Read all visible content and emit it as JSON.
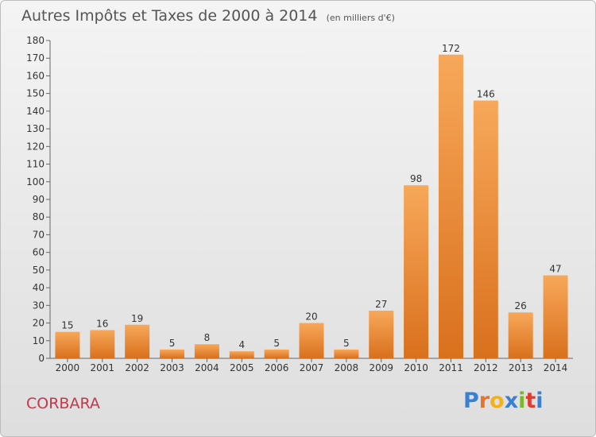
{
  "header": {
    "title": "Autres Impôts et Taxes de 2000 à 2014",
    "subtitle": "(en milliers d'€)"
  },
  "footer": {
    "town": "CORBARA",
    "brand": "Proxiti"
  },
  "colors": {
    "bar_top": "#f7a85a",
    "bar_bottom": "#d9701c",
    "town": "#c8364a",
    "brand_letters": [
      "#3b7fd1",
      "#e8732a",
      "#f2b21c",
      "#3b7fd1",
      "#7ab82a",
      "#e33b2c",
      "#3b7fd1"
    ]
  },
  "chart_data": {
    "type": "bar",
    "title": "Autres Impôts et Taxes de 2000 à 2014",
    "subtitle": "(en milliers d'€)",
    "categories": [
      "2000",
      "2001",
      "2002",
      "2003",
      "2004",
      "2005",
      "2006",
      "2007",
      "2008",
      "2009",
      "2010",
      "2011",
      "2012",
      "2013",
      "2014"
    ],
    "values": [
      15,
      16,
      19,
      5,
      8,
      4,
      5,
      20,
      5,
      27,
      98,
      172,
      146,
      26,
      47
    ],
    "ylim": [
      0,
      180
    ],
    "yticks": [
      0,
      10,
      20,
      30,
      40,
      50,
      60,
      70,
      80,
      90,
      100,
      110,
      120,
      130,
      140,
      150,
      160,
      170,
      180
    ],
    "grid": false,
    "data_labels": true
  }
}
